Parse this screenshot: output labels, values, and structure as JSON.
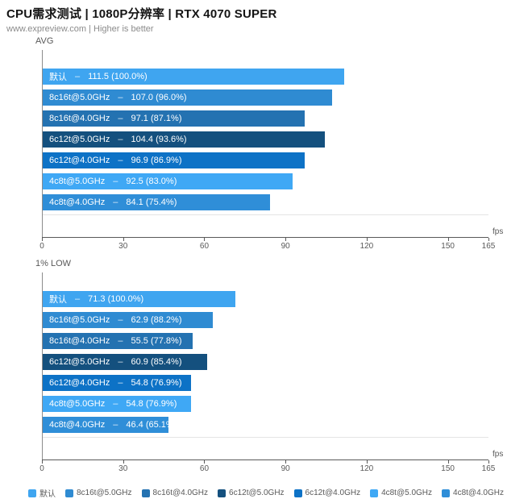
{
  "header": {
    "title": "CPU需求测试 | 1080P分辨率 | RTX 4070 SUPER",
    "subtitle": "www.expreview.com | Higher is better"
  },
  "dash": "–",
  "chart_data": [
    {
      "type": "bar",
      "title": "AVG",
      "orientation": "horizontal",
      "xlabel": "",
      "unit": "fps",
      "xlim": [
        0,
        165
      ],
      "xticks": [
        0,
        30,
        60,
        90,
        120,
        150,
        165
      ],
      "grid": false,
      "categories": [
        "默认",
        "8c16t@5.0GHz",
        "8c16t@4.0GHz",
        "6c12t@5.0GHz",
        "6c12t@4.0GHz",
        "4c8t@5.0GHz",
        "4c8t@4.0GHz"
      ],
      "values": [
        111.5,
        107.0,
        97.1,
        104.4,
        96.9,
        92.5,
        84.1
      ],
      "percent_labels": [
        "100.0%",
        "96.0%",
        "87.1%",
        "93.6%",
        "86.9%",
        "83.0%",
        "75.4%"
      ],
      "colors": [
        "#3fa5f0",
        "#2f8bd2",
        "#2472b1",
        "#14507e",
        "#0d72c6",
        "#3fa8f5",
        "#2f8ed8"
      ]
    },
    {
      "type": "bar",
      "title": "1% LOW",
      "orientation": "horizontal",
      "xlabel": "",
      "unit": "fps",
      "xlim": [
        0,
        165
      ],
      "xticks": [
        0,
        30,
        60,
        90,
        120,
        150,
        165
      ],
      "grid": false,
      "categories": [
        "默认",
        "8c16t@5.0GHz",
        "8c16t@4.0GHz",
        "6c12t@5.0GHz",
        "6c12t@4.0GHz",
        "4c8t@5.0GHz",
        "4c8t@4.0GHz"
      ],
      "values": [
        71.3,
        62.9,
        55.5,
        60.9,
        54.8,
        54.8,
        46.4
      ],
      "percent_labels": [
        "100.0%",
        "88.2%",
        "77.8%",
        "85.4%",
        "76.9%",
        "76.9%",
        "65.1%"
      ],
      "colors": [
        "#3fa5f0",
        "#2f8bd2",
        "#2472b1",
        "#14507e",
        "#0d72c6",
        "#3fa8f5",
        "#2f8ed8"
      ]
    }
  ],
  "legend": {
    "items": [
      {
        "label": "默认",
        "color": "#3fa5f0"
      },
      {
        "label": "8c16t@5.0GHz",
        "color": "#2f8bd2"
      },
      {
        "label": "8c16t@4.0GHz",
        "color": "#2472b1"
      },
      {
        "label": "6c12t@5.0GHz",
        "color": "#14507e"
      },
      {
        "label": "6c12t@4.0GHz",
        "color": "#0d72c6"
      },
      {
        "label": "4c8t@5.0GHz",
        "color": "#3fa8f5"
      },
      {
        "label": "4c8t@4.0GHz",
        "color": "#2f8ed8"
      }
    ]
  }
}
